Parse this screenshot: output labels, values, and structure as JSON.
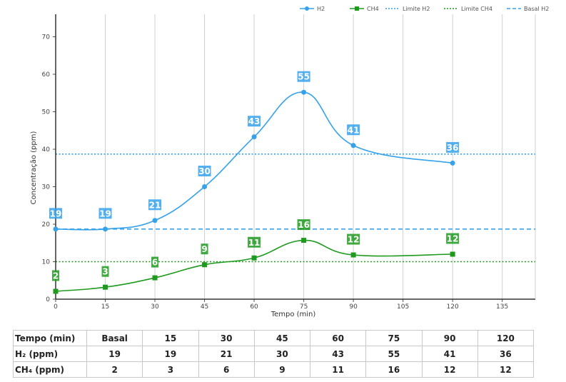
{
  "chart_data": {
    "type": "line",
    "title": "",
    "xlabel": "Tempo (min)",
    "ylabel": "Concentração (ppm)",
    "xlim": [
      0,
      145
    ],
    "ylim": [
      0,
      76
    ],
    "x_ticks": [
      "0",
      "15",
      "30",
      "45",
      "60",
      "75",
      "90",
      "105",
      "120",
      "135"
    ],
    "y_ticks": [
      "0",
      "10",
      "20",
      "30",
      "40",
      "50",
      "60",
      "70"
    ],
    "grid": "vertical",
    "legend_position": "top-right",
    "x": [
      0,
      15,
      30,
      45,
      60,
      75,
      90,
      120
    ],
    "series": [
      {
        "name": "H2",
        "values": [
          18.7,
          18.7,
          21,
          30,
          43.3,
          55.2,
          41,
          36.3
        ],
        "labels": [
          "19",
          "19",
          "21",
          "30",
          "43",
          "55",
          "41",
          "36"
        ],
        "color": "#36A2EB",
        "marker": "circle"
      },
      {
        "name": "CH4",
        "values": [
          2.1,
          3.2,
          5.7,
          9.2,
          11,
          15.7,
          11.8,
          12
        ],
        "labels": [
          "2",
          "3",
          "6",
          "9",
          "11",
          "16",
          "12",
          "12"
        ],
        "color": "#1E9A1E",
        "marker": "square"
      }
    ],
    "reference_lines": [
      {
        "name": "Limite H2",
        "value": 38.7,
        "color": "#36A2EB",
        "style": "dotted"
      },
      {
        "name": "Limite CH4",
        "value": 10,
        "color": "#1E9A1E",
        "style": "dotted"
      },
      {
        "name": "Basal H2",
        "value": 18.7,
        "color": "#36A2EB",
        "style": "dashed"
      }
    ]
  },
  "table": {
    "rows": [
      {
        "label": "Tempo (min)",
        "cells": [
          "Basal",
          "15",
          "30",
          "45",
          "60",
          "75",
          "90",
          "120"
        ]
      },
      {
        "label": "H₂ (ppm)",
        "cells": [
          "19",
          "19",
          "21",
          "30",
          "43",
          "55",
          "41",
          "36"
        ]
      },
      {
        "label": "CH₄ (ppm)",
        "cells": [
          "2",
          "3",
          "6",
          "9",
          "11",
          "16",
          "12",
          "12"
        ]
      }
    ]
  }
}
